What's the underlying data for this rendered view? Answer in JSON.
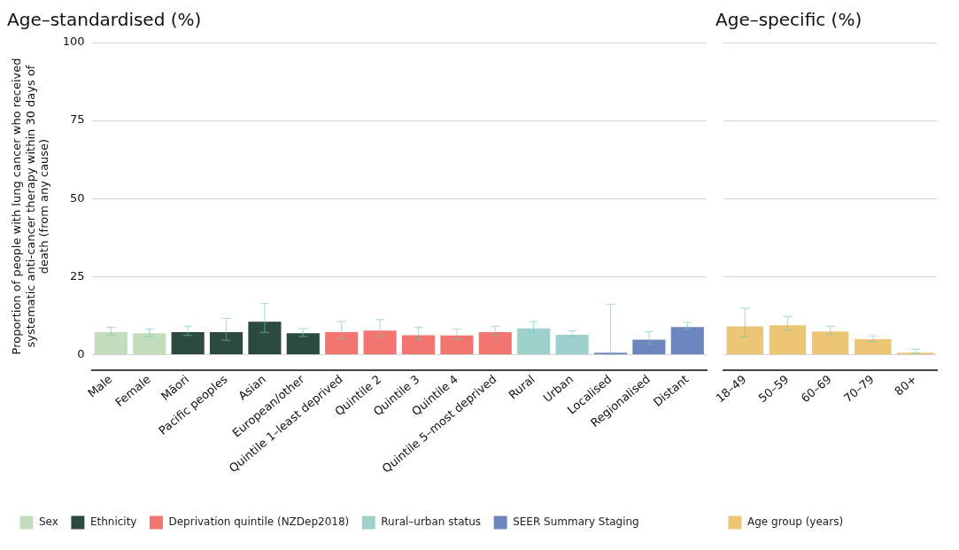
{
  "chart_data": [
    {
      "type": "bar",
      "title": "Age–standardised (%)",
      "ylabel": "Proportion of people with lung cancer who received systematic anti-cancer therapy within 30 days of death (from any cause)",
      "categories": [
        "Male",
        "Female",
        "Māori",
        "Pacific peoples",
        "Asian",
        "European/other",
        "Quintile 1–least deprived",
        "Quintile 2",
        "Quintile 3",
        "Quintile 4",
        "Quintile 5–most deprived",
        "Rural",
        "Urban",
        "Localised",
        "Regionalised",
        "Distant"
      ],
      "series": [
        {
          "name": "Sex",
          "color": "#c3dcbb",
          "values": [
            7.5,
            7.1,
            null,
            null,
            null,
            null,
            null,
            null,
            null,
            null,
            null,
            null,
            null,
            null,
            null,
            null
          ],
          "errors": [
            [
              6.3,
              8.7
            ],
            [
              5.8,
              8.2
            ],
            null,
            null,
            null,
            null,
            null,
            null,
            null,
            null,
            null,
            null,
            null,
            null,
            null,
            null
          ]
        },
        {
          "name": "Ethnicity",
          "color": "#2d4a3e",
          "values": [
            null,
            null,
            7.5,
            7.5,
            10.8,
            7.1,
            null,
            null,
            null,
            null,
            null,
            null,
            null,
            null,
            null,
            null
          ],
          "errors": [
            null,
            null,
            [
              6.2,
              9.1
            ],
            [
              4.6,
              11.6
            ],
            [
              7.1,
              16.4
            ],
            [
              5.8,
              8.3
            ],
            null,
            null,
            null,
            null,
            null,
            null,
            null,
            null,
            null,
            null
          ]
        },
        {
          "name": "Deprivation quintile (NZDep2018)",
          "color": "#f2756f",
          "values": [
            null,
            null,
            null,
            null,
            null,
            null,
            7.5,
            8.0,
            6.5,
            6.4,
            7.5,
            null,
            null,
            null,
            null,
            null
          ],
          "errors": [
            null,
            null,
            null,
            null,
            null,
            null,
            [
              5.1,
              10.6
            ],
            [
              5.9,
              11.2
            ],
            [
              4.8,
              8.7
            ],
            [
              4.9,
              8.2
            ],
            [
              6.1,
              9.1
            ],
            null,
            null,
            null,
            null,
            null
          ]
        },
        {
          "name": "Rural–urban status",
          "color": "#9fd1cc",
          "values": [
            null,
            null,
            null,
            null,
            null,
            null,
            null,
            null,
            null,
            null,
            null,
            8.7,
            6.6,
            null,
            null,
            null
          ],
          "errors": [
            null,
            null,
            null,
            null,
            null,
            null,
            null,
            null,
            null,
            null,
            null,
            [
              7.2,
              10.6
            ],
            [
              5.8,
              7.6
            ],
            null,
            null,
            null
          ]
        },
        {
          "name": "SEER Summary Staging",
          "color": "#6c85bd",
          "values": [
            null,
            null,
            null,
            null,
            null,
            null,
            null,
            null,
            null,
            null,
            null,
            null,
            null,
            0.9,
            5.1,
            9.1
          ],
          "errors": [
            null,
            null,
            null,
            null,
            null,
            null,
            null,
            null,
            null,
            null,
            null,
            null,
            null,
            [
              0,
              16.1
            ],
            [
              3.3,
              7.4
            ],
            [
              8.1,
              10.4
            ]
          ]
        }
      ],
      "ylim": [
        -5,
        100
      ],
      "yticks": [
        0,
        25,
        50,
        75,
        100
      ],
      "grid": "y",
      "legend": "bottom"
    },
    {
      "type": "bar",
      "title": "Age–specific (%)",
      "categories": [
        "18–49",
        "50–59",
        "60–69",
        "70–79",
        "80+"
      ],
      "series": [
        {
          "name": "Age group (years)",
          "color": "#ecc575",
          "values": [
            9.3,
            9.7,
            7.7,
            5.2,
            0.9
          ],
          "errors": [
            [
              5.7,
              14.9
            ],
            [
              7.9,
              12.2
            ],
            [
              6.6,
              9.1
            ],
            [
              4.2,
              6.0
            ],
            [
              0.5,
              1.7
            ]
          ]
        }
      ],
      "ylim": [
        -5,
        100
      ],
      "yticks": [
        0,
        25,
        50,
        75,
        100
      ],
      "grid": "y",
      "legend": "bottom",
      "tick_labels": "x"
    }
  ]
}
